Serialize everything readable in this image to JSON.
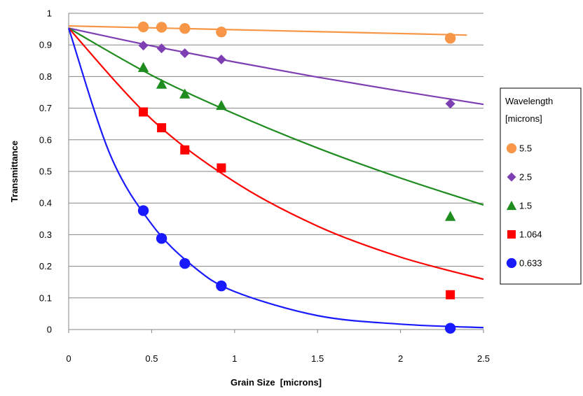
{
  "chart_data": {
    "type": "scatter",
    "title": "",
    "xlabel": "Grain Size  [microns]",
    "ylabel": "Transmittance",
    "xlim": [
      0,
      2.5
    ],
    "ylim": [
      0,
      1
    ],
    "x_ticks": [
      "0",
      "0.5",
      "1",
      "1.5",
      "2",
      "2.5"
    ],
    "y_ticks": [
      "0",
      "0.1",
      "0.2",
      "0.3",
      "0.4",
      "0.5",
      "0.6",
      "0.7",
      "0.8",
      "0.9",
      "1"
    ],
    "grid": "horizontal",
    "legend_position": "right",
    "legend_title_lines": [
      "Wavelength",
      "[microns]"
    ],
    "series": [
      {
        "name": "5.5",
        "color": "#F79646",
        "marker": "circle",
        "points": [
          [
            0.45,
            0.957
          ],
          [
            0.56,
            0.956
          ],
          [
            0.7,
            0.952
          ],
          [
            0.92,
            0.941
          ],
          [
            2.3,
            0.921
          ]
        ],
        "fit_curve": [
          [
            0,
            0.96
          ],
          [
            0.5,
            0.954
          ],
          [
            1.0,
            0.948
          ],
          [
            1.5,
            0.942
          ],
          [
            2.0,
            0.936
          ],
          [
            2.4,
            0.931
          ]
        ]
      },
      {
        "name": "2.5",
        "color": "#7E3FB3",
        "marker": "diamond",
        "points": [
          [
            0.45,
            0.898
          ],
          [
            0.56,
            0.889
          ],
          [
            0.7,
            0.874
          ],
          [
            0.92,
            0.854
          ],
          [
            2.3,
            0.714
          ]
        ],
        "fit_curve": [
          [
            0,
            0.953
          ],
          [
            0.5,
            0.897
          ],
          [
            1.0,
            0.846
          ],
          [
            1.5,
            0.798
          ],
          [
            2.0,
            0.754
          ],
          [
            2.5,
            0.712
          ]
        ]
      },
      {
        "name": "1.5",
        "color": "#1E8C1E",
        "marker": "triangle",
        "points": [
          [
            0.45,
            0.829
          ],
          [
            0.56,
            0.776
          ],
          [
            0.7,
            0.745
          ],
          [
            0.92,
            0.709
          ],
          [
            2.3,
            0.358
          ]
        ],
        "fit_curve": [
          [
            0,
            0.953
          ],
          [
            0.5,
            0.804
          ],
          [
            1.0,
            0.682
          ],
          [
            1.5,
            0.574
          ],
          [
            2.0,
            0.479
          ],
          [
            2.5,
            0.394
          ]
        ]
      },
      {
        "name": "1.064",
        "color": "#FF0000",
        "marker": "square",
        "points": [
          [
            0.45,
            0.688
          ],
          [
            0.56,
            0.638
          ],
          [
            0.7,
            0.568
          ],
          [
            0.92,
            0.511
          ],
          [
            2.3,
            0.11
          ]
        ],
        "fit_curve": [
          [
            0,
            0.953
          ],
          [
            0.5,
            0.665
          ],
          [
            1.0,
            0.467
          ],
          [
            1.5,
            0.327
          ],
          [
            2.0,
            0.229
          ],
          [
            2.5,
            0.159
          ]
        ]
      },
      {
        "name": "0.633",
        "color": "#1A1AFF",
        "marker": "circle",
        "points": [
          [
            0.45,
            0.376
          ],
          [
            0.56,
            0.288
          ],
          [
            0.7,
            0.209
          ],
          [
            0.92,
            0.138
          ],
          [
            2.3,
            0.004
          ]
        ],
        "fit_curve": [
          [
            0,
            0.953
          ],
          [
            0.25,
            0.553
          ],
          [
            0.5,
            0.333
          ],
          [
            0.75,
            0.2
          ],
          [
            1.0,
            0.12
          ],
          [
            1.5,
            0.044
          ],
          [
            2.0,
            0.017
          ],
          [
            2.5,
            0.006
          ]
        ]
      }
    ]
  }
}
